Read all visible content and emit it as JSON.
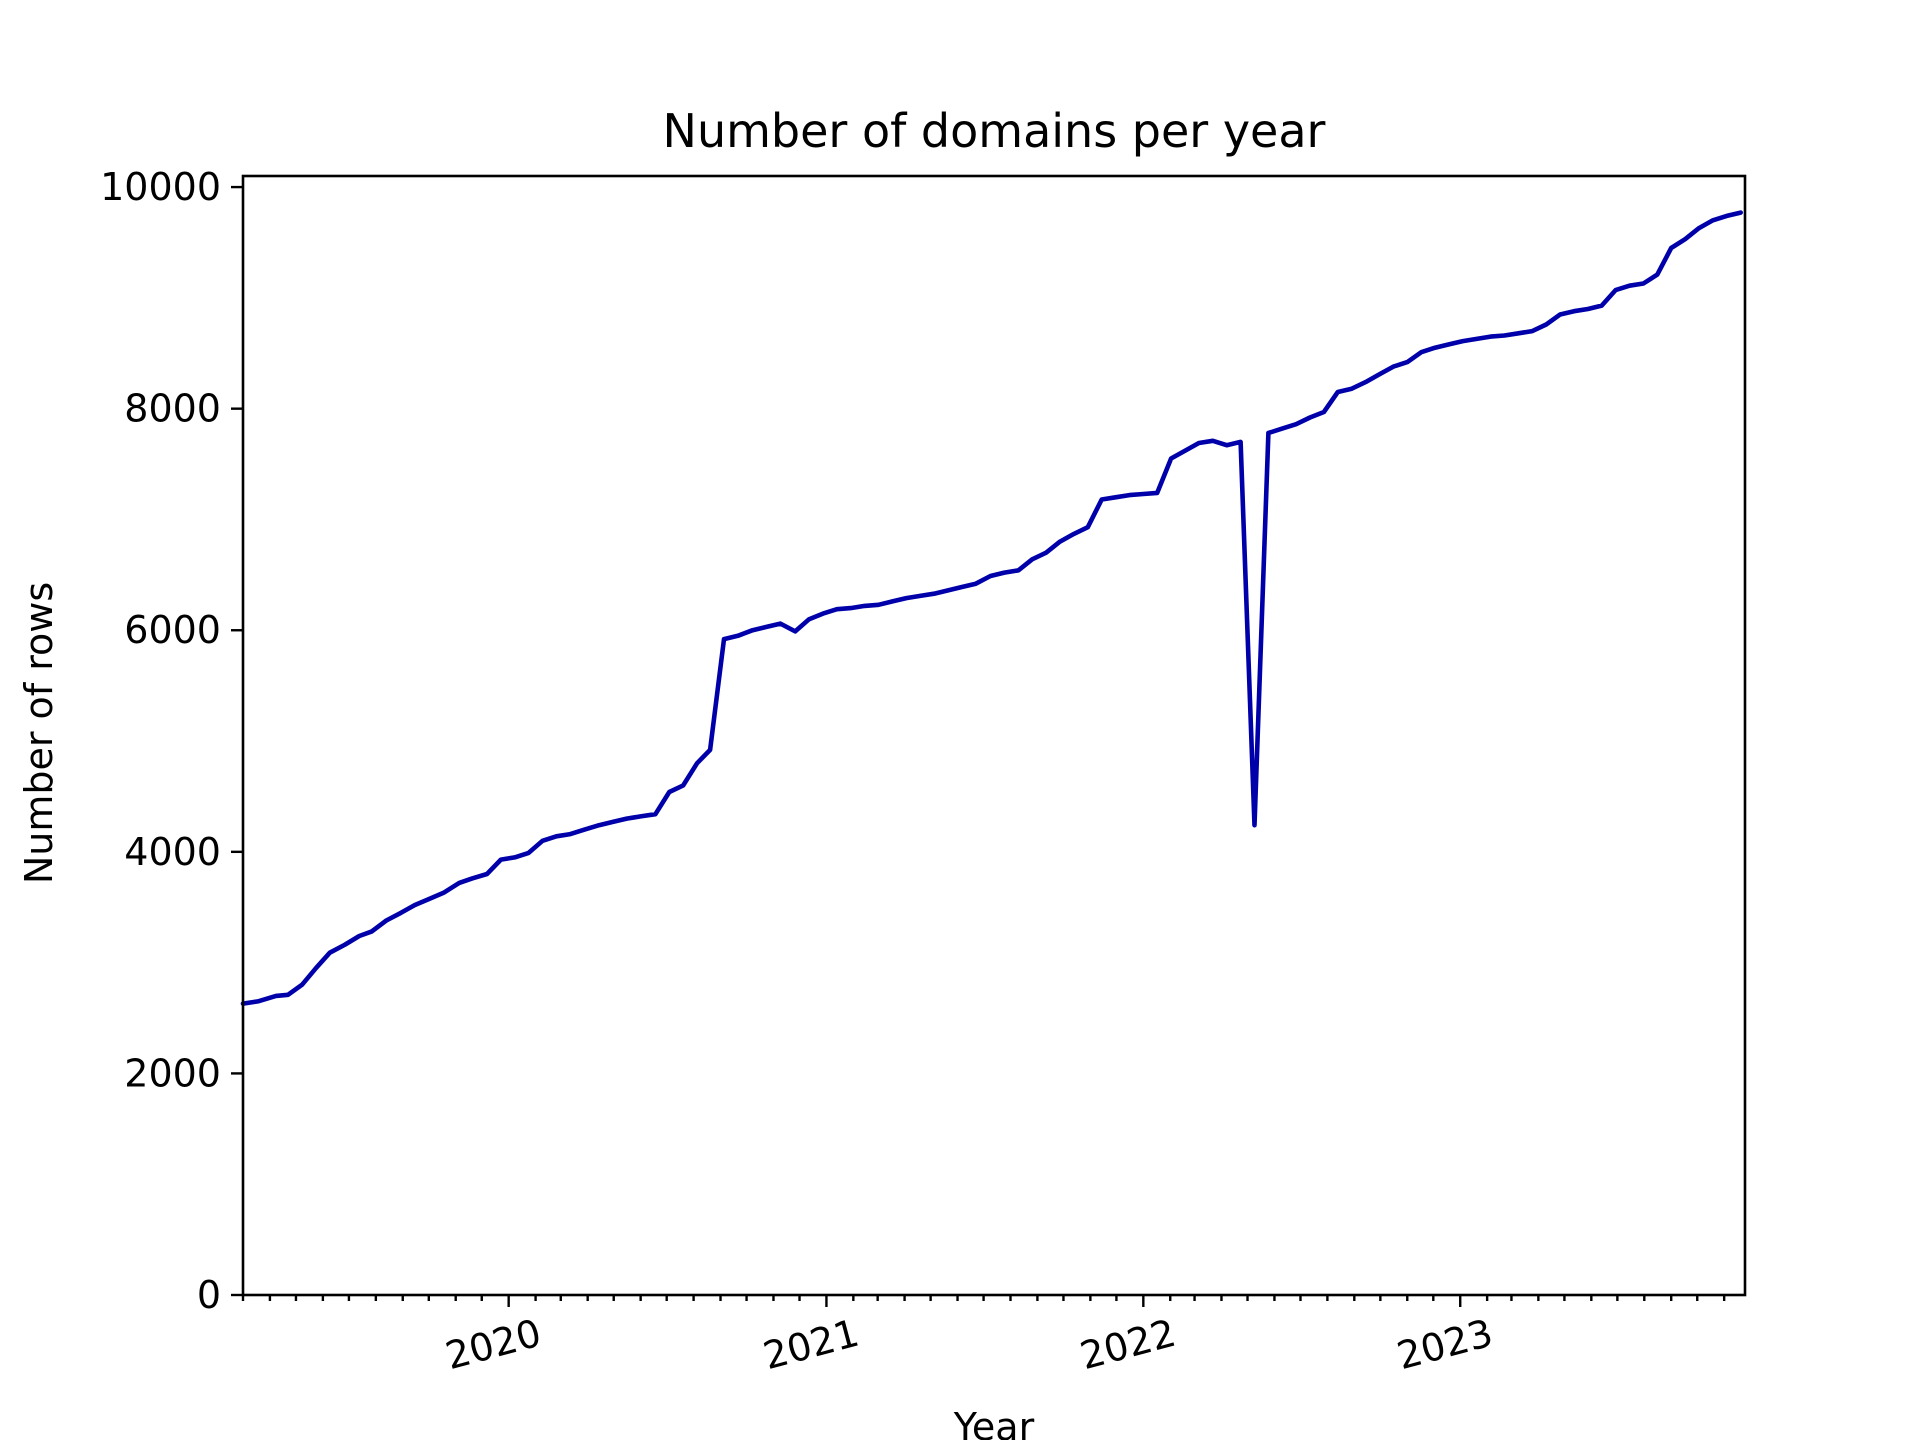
{
  "chart_data": {
    "type": "line",
    "title": "Number of domains per year",
    "xlabel": "Year",
    "ylabel": "Number of rows",
    "xlim": [
      "2019-03-01",
      "2023-11-25"
    ],
    "ylim": [
      0,
      10100
    ],
    "grid": false,
    "legend": "none",
    "colors": {
      "line": "#0000aa"
    },
    "y_ticks": [
      "0",
      "2000",
      "4000",
      "6000",
      "8000",
      "10000"
    ],
    "x_ticks": [
      "2020",
      "2021",
      "2022",
      "2023"
    ],
    "series": [
      {
        "points": [
          [
            "2019-03-01",
            2630
          ],
          [
            "2019-03-18",
            2650
          ],
          [
            "2019-04-08",
            2700
          ],
          [
            "2019-04-22",
            2710
          ],
          [
            "2019-05-08",
            2800
          ],
          [
            "2019-05-24",
            2950
          ],
          [
            "2019-06-09",
            3090
          ],
          [
            "2019-06-26",
            3160
          ],
          [
            "2019-07-13",
            3240
          ],
          [
            "2019-07-27",
            3280
          ],
          [
            "2019-08-13",
            3380
          ],
          [
            "2019-08-30",
            3450
          ],
          [
            "2019-09-15",
            3520
          ],
          [
            "2019-09-30",
            3570
          ],
          [
            "2019-10-18",
            3630
          ],
          [
            "2019-11-05",
            3720
          ],
          [
            "2019-11-20",
            3760
          ],
          [
            "2019-12-07",
            3800
          ],
          [
            "2019-12-23",
            3930
          ],
          [
            "2020-01-08",
            3950
          ],
          [
            "2020-01-24",
            3990
          ],
          [
            "2020-02-09",
            4100
          ],
          [
            "2020-02-25",
            4140
          ],
          [
            "2020-03-12",
            4160
          ],
          [
            "2020-03-28",
            4200
          ],
          [
            "2020-04-14",
            4240
          ],
          [
            "2020-04-30",
            4270
          ],
          [
            "2020-05-16",
            4300
          ],
          [
            "2020-06-01",
            4320
          ],
          [
            "2020-06-18",
            4340
          ],
          [
            "2020-07-04",
            4540
          ],
          [
            "2020-07-20",
            4600
          ],
          [
            "2020-08-05",
            4800
          ],
          [
            "2020-08-20",
            4920
          ],
          [
            "2020-09-05",
            5920
          ],
          [
            "2020-09-21",
            5950
          ],
          [
            "2020-10-08",
            6000
          ],
          [
            "2020-10-24",
            6030
          ],
          [
            "2020-11-09",
            6060
          ],
          [
            "2020-11-26",
            5990
          ],
          [
            "2020-12-12",
            6100
          ],
          [
            "2020-12-28",
            6150
          ],
          [
            "2021-01-13",
            6190
          ],
          [
            "2021-01-29",
            6200
          ],
          [
            "2021-02-14",
            6220
          ],
          [
            "2021-03-02",
            6230
          ],
          [
            "2021-03-18",
            6260
          ],
          [
            "2021-04-03",
            6290
          ],
          [
            "2021-04-19",
            6310
          ],
          [
            "2021-05-05",
            6330
          ],
          [
            "2021-05-21",
            6360
          ],
          [
            "2021-06-06",
            6390
          ],
          [
            "2021-06-22",
            6420
          ],
          [
            "2021-07-09",
            6490
          ],
          [
            "2021-07-25",
            6520
          ],
          [
            "2021-08-10",
            6540
          ],
          [
            "2021-08-26",
            6640
          ],
          [
            "2021-09-11",
            6700
          ],
          [
            "2021-09-27",
            6800
          ],
          [
            "2021-10-13",
            6870
          ],
          [
            "2021-10-29",
            6930
          ],
          [
            "2021-11-14",
            7180
          ],
          [
            "2021-11-30",
            7200
          ],
          [
            "2021-12-16",
            7220
          ],
          [
            "2022-01-01",
            7230
          ],
          [
            "2022-01-17",
            7240
          ],
          [
            "2022-02-02",
            7550
          ],
          [
            "2022-02-18",
            7620
          ],
          [
            "2022-03-06",
            7690
          ],
          [
            "2022-03-22",
            7710
          ],
          [
            "2022-04-07",
            7670
          ],
          [
            "2022-04-23",
            7700
          ],
          [
            "2022-05-09",
            4240
          ],
          [
            "2022-05-25",
            7780
          ],
          [
            "2022-06-10",
            7820
          ],
          [
            "2022-06-26",
            7860
          ],
          [
            "2022-07-12",
            7920
          ],
          [
            "2022-07-28",
            7970
          ],
          [
            "2022-08-13",
            8150
          ],
          [
            "2022-08-29",
            8180
          ],
          [
            "2022-09-14",
            8240
          ],
          [
            "2022-09-30",
            8310
          ],
          [
            "2022-10-16",
            8380
          ],
          [
            "2022-11-01",
            8420
          ],
          [
            "2022-11-17",
            8510
          ],
          [
            "2022-12-03",
            8550
          ],
          [
            "2022-12-19",
            8580
          ],
          [
            "2023-01-04",
            8610
          ],
          [
            "2023-01-20",
            8630
          ],
          [
            "2023-02-05",
            8650
          ],
          [
            "2023-02-21",
            8660
          ],
          [
            "2023-03-09",
            8680
          ],
          [
            "2023-03-25",
            8700
          ],
          [
            "2023-04-10",
            8760
          ],
          [
            "2023-04-26",
            8850
          ],
          [
            "2023-05-12",
            8880
          ],
          [
            "2023-05-28",
            8900
          ],
          [
            "2023-06-13",
            8930
          ],
          [
            "2023-06-29",
            9070
          ],
          [
            "2023-07-15",
            9110
          ],
          [
            "2023-07-31",
            9130
          ],
          [
            "2023-08-16",
            9210
          ],
          [
            "2023-09-01",
            9450
          ],
          [
            "2023-09-17",
            9530
          ],
          [
            "2023-10-03",
            9630
          ],
          [
            "2023-10-19",
            9700
          ],
          [
            "2023-11-04",
            9740
          ],
          [
            "2023-11-20",
            9770
          ]
        ]
      }
    ]
  }
}
